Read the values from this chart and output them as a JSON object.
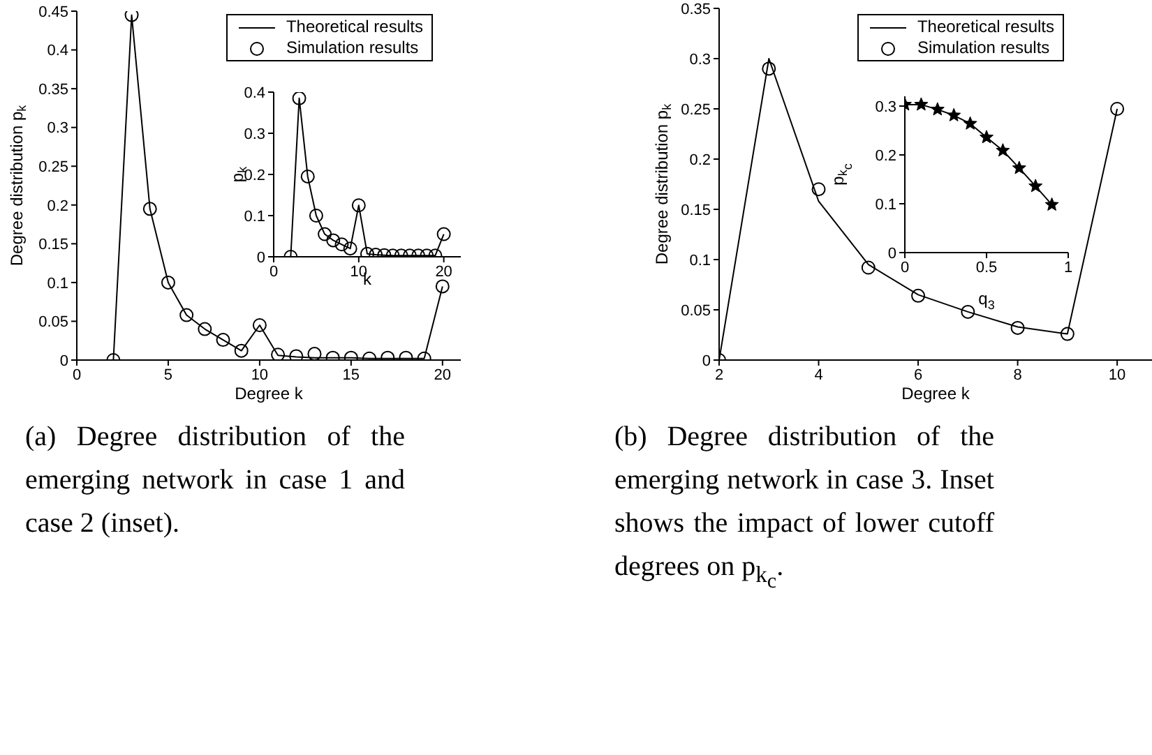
{
  "chart_data": [
    {
      "type": "line",
      "xlabel": "Degree k",
      "ylabel": "Degree distribution p$_{k}$",
      "xlim": [
        0,
        21
      ],
      "xticks": [
        0,
        5,
        10,
        15,
        20
      ],
      "ylim": [
        0,
        0.45
      ],
      "yticks": [
        0,
        0.05,
        0.1,
        0.15,
        0.2,
        0.25,
        0.3,
        0.35,
        0.4,
        0.45
      ],
      "legend": "top right",
      "x": [
        2,
        3,
        4,
        5,
        6,
        7,
        8,
        9,
        10,
        11,
        12,
        13,
        14,
        15,
        16,
        17,
        18,
        19,
        20
      ],
      "series": [
        {
          "name": "Theoretical results",
          "type": "line",
          "marker": "none",
          "color": "#000000",
          "values": [
            0,
            0.445,
            0.195,
            0.1,
            0.058,
            0.04,
            0.026,
            0.012,
            0.045,
            0.006,
            0.004,
            0.003,
            0.003,
            0.003,
            0.002,
            0.002,
            0.002,
            0.002,
            0.095
          ]
        },
        {
          "name": "Simulation results",
          "type": "scatter",
          "marker": "circle",
          "color": "#000000",
          "values": [
            0,
            0.445,
            0.195,
            0.1,
            0.058,
            0.04,
            0.026,
            0.012,
            0.045,
            0.007,
            0.005,
            0.008,
            0.003,
            0.003,
            0.002,
            0.003,
            0.003,
            0.002,
            0.095
          ]
        }
      ],
      "annotations": [
        "(a) Degree distribution of the emerging network in case 1 and case 2 (inset)."
      ]
    },
    {
      "type": "line",
      "xlabel": "k",
      "ylabel": "p$_{k}$",
      "xlim": [
        0,
        22
      ],
      "xticks": [
        0,
        10,
        20
      ],
      "ylim": [
        0,
        0.4
      ],
      "yticks": [
        0,
        0.1,
        0.2,
        0.3,
        0.4
      ],
      "x": [
        2,
        3,
        4,
        5,
        6,
        7,
        8,
        9,
        10,
        11,
        12,
        13,
        14,
        15,
        16,
        17,
        18,
        19,
        20
      ],
      "series": [
        {
          "type": "line",
          "marker": "circle",
          "color": "#000000",
          "values": [
            0,
            0.385,
            0.195,
            0.1,
            0.055,
            0.04,
            0.03,
            0.02,
            0.125,
            0.007,
            0.005,
            0.004,
            0.003,
            0.003,
            0.003,
            0.003,
            0.003,
            0.003,
            0.055
          ]
        }
      ]
    },
    {
      "type": "line",
      "xlabel": "Degree k",
      "ylabel": "Degree distribution p$_{k}$",
      "xlim": [
        2,
        10.7
      ],
      "xticks": [
        2,
        4,
        6,
        8,
        10
      ],
      "ylim": [
        0,
        0.35
      ],
      "yticks": [
        0,
        0.05,
        0.1,
        0.15,
        0.2,
        0.25,
        0.3,
        0.35
      ],
      "legend": "top right",
      "x": [
        2,
        3,
        4,
        5,
        6,
        7,
        8,
        9,
        10
      ],
      "series": [
        {
          "name": "Theoretical results",
          "type": "line",
          "marker": "none",
          "color": "#000000",
          "values": [
            0,
            0.3,
            0.158,
            0.095,
            0.065,
            0.048,
            0.033,
            0.026,
            0.25
          ]
        },
        {
          "name": "Simulation results",
          "type": "scatter",
          "marker": "circle",
          "color": "#000000",
          "values": [
            0,
            0.29,
            0.17,
            0.092,
            0.064,
            0.048,
            0.032,
            0.026,
            0.25
          ]
        }
      ],
      "annotations": [
        "(b) Degree distribution of the emerging network in case 3. Inset shows the impact of lower cutoff degrees on p$_{k}$$_{c}$."
      ]
    },
    {
      "type": "line",
      "xlabel": "q$_{3}$",
      "ylabel": "p$_{k}$$_{c}$",
      "xlim": [
        0,
        1
      ],
      "xticks": [
        0,
        0.5,
        1
      ],
      "ylim": [
        0,
        0.32
      ],
      "yticks": [
        0,
        0.1,
        0.2,
        0.3
      ],
      "x": [
        0,
        0.1,
        0.2,
        0.3,
        0.4,
        0.5,
        0.6,
        0.7,
        0.8,
        0.9
      ],
      "series": [
        {
          "type": "line",
          "marker": "star",
          "color": "#000000",
          "values": [
            0.303,
            0.303,
            0.293,
            0.281,
            0.264,
            0.236,
            0.209,
            0.173,
            0.136,
            0.098
          ]
        }
      ]
    }
  ]
}
